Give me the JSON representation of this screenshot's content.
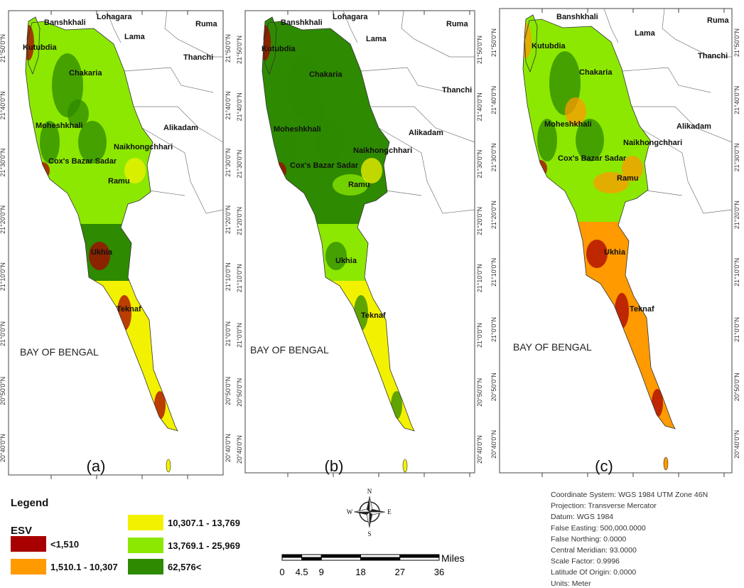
{
  "latitude_labels": [
    "21°50'0\"N",
    "21°40'0\"N",
    "21°30'0\"N",
    "21°20'0\"N",
    "21°10'0\"N",
    "21°0'0\"N",
    "20°50'0\"N",
    "20°40'0\"N"
  ],
  "sea_label": "BAY OF BENGAL",
  "panels": [
    {
      "label": "(a)",
      "places": [
        "Banshkhali",
        "Lohagara",
        "Lama",
        "Ruma",
        "Kutubdia",
        "Thanchi",
        "Chakaria",
        "Moheshkhali",
        "Alikadam",
        "Naikhongchhari",
        "Cox's Bazar Sadar",
        "Ramu",
        "Ukhia",
        "Teknaf"
      ]
    },
    {
      "label": "(b)",
      "places": [
        "Banshkhali",
        "Lohagara",
        "Lama",
        "Ruma",
        "Kutubdia",
        "Thanchi",
        "Chakaria",
        "Moheshkhali",
        "Alikadam",
        "Naikhongchhari",
        "Cox's Bazar Sadar",
        "Ramu",
        "Ukhia",
        "Teknaf"
      ]
    },
    {
      "label": "(c)",
      "places": [
        "Banshkhali",
        "Lama",
        "Ruma",
        "Kutubdia",
        "Thanchi",
        "Chakaria",
        "Moheshkhali",
        "Alikadam",
        "Naikhongchhari",
        "Cox's Bazar Sadar",
        "Ramu",
        "Ukhia",
        "Teknaf"
      ]
    }
  ],
  "legend": {
    "title": "Legend",
    "subtitle": "ESV",
    "items": [
      {
        "label": "<1,510",
        "color": "#a80000"
      },
      {
        "label": "1,510.1 - 10,307",
        "color": "#ff9a00"
      },
      {
        "label": "10,307.1 - 13,769",
        "color": "#f2f200"
      },
      {
        "label": "13,769.1 - 25,969",
        "color": "#8ce800"
      },
      {
        "label": "62,576<",
        "color": "#2e8a00"
      }
    ]
  },
  "compass": {
    "north": "N",
    "east": "E",
    "south": "S",
    "west": "W"
  },
  "scale_bar": {
    "unit": "Miles",
    "ticks": [
      0,
      4.5,
      9,
      18,
      27,
      36
    ]
  },
  "projection_info": [
    "Coordinate System: WGS 1984 UTM Zone 46N",
    "Projection: Transverse Mercator",
    "Datum: WGS 1984",
    "False Easting: 500,000.0000",
    "False Northing: 0.0000",
    "Central Meridian: 93.0000",
    "Scale Factor: 0.9996",
    "Latitude Of Origin: 0.0000",
    "Units: Meter"
  ]
}
